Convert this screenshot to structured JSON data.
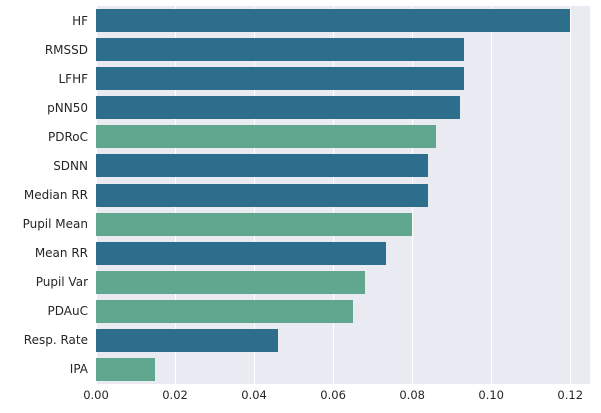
{
  "chart_data": {
    "type": "bar",
    "orientation": "horizontal",
    "title": "",
    "xlabel": "",
    "ylabel": "",
    "categories": [
      "HF",
      "RMSSD",
      "LFHF",
      "pNN50",
      "PDRoC",
      "SDNN",
      "Median RR",
      "Pupil Mean",
      "Mean RR",
      "Pupil Var",
      "PDAuC",
      "Resp. Rate",
      "IPA"
    ],
    "values": [
      0.12,
      0.093,
      0.093,
      0.092,
      0.086,
      0.084,
      0.084,
      0.08,
      0.0735,
      0.068,
      0.065,
      0.046,
      0.015
    ],
    "bar_color_keys": [
      "dark",
      "dark",
      "dark",
      "dark",
      "green",
      "dark",
      "dark",
      "green",
      "dark",
      "green",
      "green",
      "dark",
      "green"
    ],
    "palette": {
      "dark": "#2d6e8c",
      "green": "#61a68f"
    },
    "xlim": [
      0,
      0.125
    ],
    "xticks": [
      0,
      0.02,
      0.04,
      0.06,
      0.08,
      0.1,
      0.12
    ],
    "xtick_labels": [
      "0.00",
      "0.02",
      "0.04",
      "0.06",
      "0.08",
      "0.10",
      "0.12"
    ],
    "grid": "on",
    "grid_color": "#ffffff",
    "plot_background": "#eaeaf2",
    "legend": "none"
  }
}
